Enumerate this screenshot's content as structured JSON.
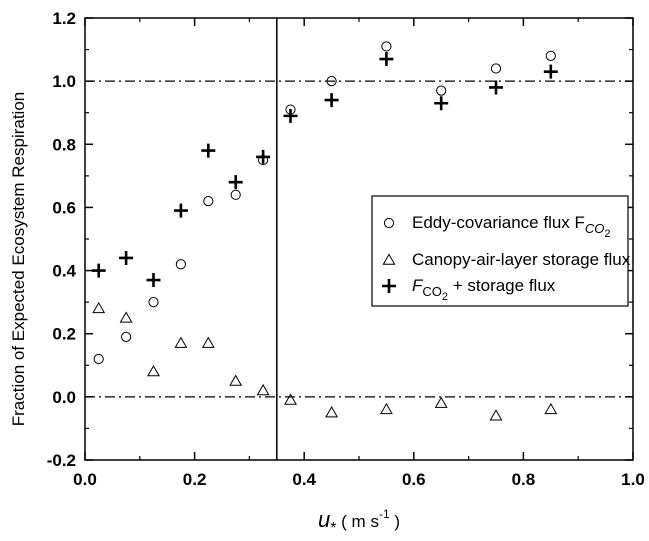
{
  "chart_data": {
    "type": "scatter",
    "xlim": [
      0.0,
      1.0
    ],
    "ylim": [
      -0.2,
      1.2
    ],
    "x_ticks": [
      "0.0",
      "0.2",
      "0.4",
      "0.6",
      "0.8",
      "1.0"
    ],
    "y_ticks": [
      "-0.2",
      "0.0",
      "0.2",
      "0.4",
      "0.6",
      "0.8",
      "1.0",
      "1.2"
    ],
    "ylabel": "Fraction of Expected Ecosystem Respiration",
    "xlabel": {
      "main": "u",
      "sub": "*",
      "unit_open": " ( m s",
      "unit_sup": "-1",
      "unit_close": " )"
    },
    "reference_lines": {
      "horizontal": [
        0.0,
        1.0
      ],
      "horizontal_style": "dash-dot",
      "vertical": [
        0.35
      ],
      "vertical_style": "solid"
    },
    "legend": {
      "placement": "right",
      "entries": [
        {
          "marker": "circle",
          "text": "Eddy-covariance flux F",
          "sub": "CO",
          "subsub": "2",
          "suffix": ""
        },
        {
          "marker": "triangle",
          "text": "Canopy-air-layer storage flux",
          "sub": "",
          "subsub": "",
          "suffix": ""
        },
        {
          "marker": "plus",
          "text": "F",
          "sub": "CO",
          "subsub": "2",
          "suffix": " + storage flux"
        }
      ]
    },
    "series": [
      {
        "marker": "circle",
        "x": [
          0.025,
          0.075,
          0.125,
          0.175,
          0.225,
          0.275,
          0.325,
          0.375,
          0.45,
          0.55,
          0.65,
          0.75,
          0.85
        ],
        "y": [
          0.12,
          0.19,
          0.3,
          0.42,
          0.62,
          0.64,
          0.75,
          0.91,
          1.0,
          1.11,
          0.97,
          1.04,
          1.08
        ]
      },
      {
        "marker": "triangle",
        "x": [
          0.025,
          0.075,
          0.125,
          0.175,
          0.225,
          0.275,
          0.325,
          0.375,
          0.45,
          0.55,
          0.65,
          0.75,
          0.85
        ],
        "y": [
          0.28,
          0.25,
          0.08,
          0.17,
          0.17,
          0.05,
          0.02,
          -0.01,
          -0.05,
          -0.04,
          -0.02,
          -0.06,
          -0.04
        ]
      },
      {
        "marker": "plus",
        "x": [
          0.025,
          0.075,
          0.125,
          0.175,
          0.225,
          0.275,
          0.325,
          0.375,
          0.45,
          0.55,
          0.65,
          0.75,
          0.85
        ],
        "y": [
          0.4,
          0.44,
          0.37,
          0.59,
          0.78,
          0.68,
          0.76,
          0.89,
          0.94,
          1.07,
          0.93,
          0.98,
          1.03
        ]
      }
    ]
  }
}
